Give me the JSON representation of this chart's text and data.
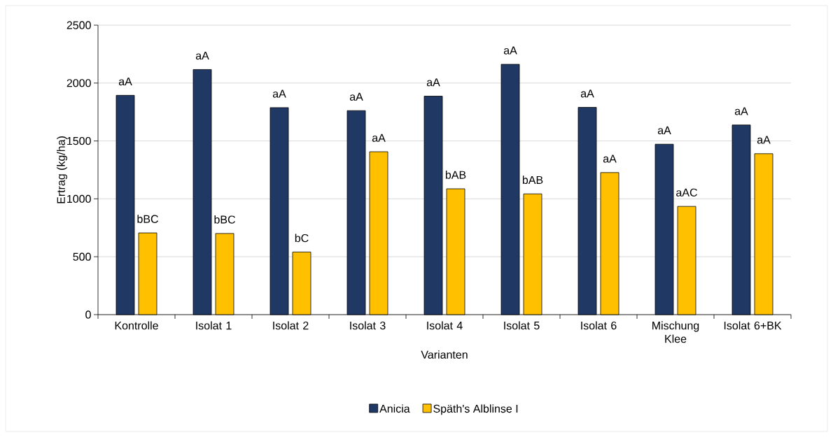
{
  "chart_data": {
    "type": "bar",
    "xlabel": "Varianten",
    "ylabel": "Ertrag (kg/ha)",
    "categories": [
      "Kontrolle",
      "Isolat 1",
      "Isolat 2",
      "Isolat 3",
      "Isolat 4",
      "Isolat 5",
      "Isolat 6",
      "Mischung Klee",
      "Isolat 6+BK"
    ],
    "series": [
      {
        "name": "Anicia",
        "color": "#203864",
        "values": [
          1894,
          2117,
          1788,
          1762,
          1887,
          2162,
          1790,
          1472,
          1638
        ]
      },
      {
        "name": "Späth's Alblinse I",
        "color": "#ffc000",
        "values": [
          706,
          701,
          541,
          1407,
          1087,
          1043,
          1227,
          935,
          1390
        ]
      }
    ],
    "ylim": [
      0,
      2500
    ],
    "yticks": [
      0,
      500,
      1000,
      1500,
      2000,
      2500
    ],
    "grid": "y",
    "legend": "bottom",
    "annotations": [
      {
        "text": "aA",
        "x": "Kontrolle",
        "y": 1894
      },
      {
        "text": "bBC",
        "x": "Kontrolle",
        "y": 706
      },
      {
        "text": "aA",
        "x": "Isolat 1",
        "y": 2117
      },
      {
        "text": "bBC",
        "x": "Isolat 1",
        "y": 701
      },
      {
        "text": "aA",
        "x": "Isolat 2",
        "y": 1788
      },
      {
        "text": "bC",
        "x": "Isolat 2",
        "y": 541
      },
      {
        "text": "aA",
        "x": "Isolat 3",
        "y": 1762
      },
      {
        "text": "aA",
        "x": "Isolat 3",
        "y": 1407
      },
      {
        "text": "aA",
        "x": "Isolat 4",
        "y": 1887
      },
      {
        "text": "bAB",
        "x": "Isolat 4",
        "y": 1087
      },
      {
        "text": "aA",
        "x": "Isolat 5",
        "y": 2162
      },
      {
        "text": "bAB",
        "x": "Isolat 5",
        "y": 1043
      },
      {
        "text": "aA",
        "x": "Isolat 6",
        "y": 1790
      },
      {
        "text": "aA",
        "x": "Isolat 6",
        "y": 1227
      },
      {
        "text": "aA",
        "x": "Mischung Klee",
        "y": 1472
      },
      {
        "text": "aAC",
        "x": "Mischung Klee",
        "y": 935
      },
      {
        "text": "aA",
        "x": "Isolat 6+BK",
        "y": 1638
      },
      {
        "text": "aA",
        "x": "Isolat 6+BK",
        "y": 1390
      }
    ]
  }
}
